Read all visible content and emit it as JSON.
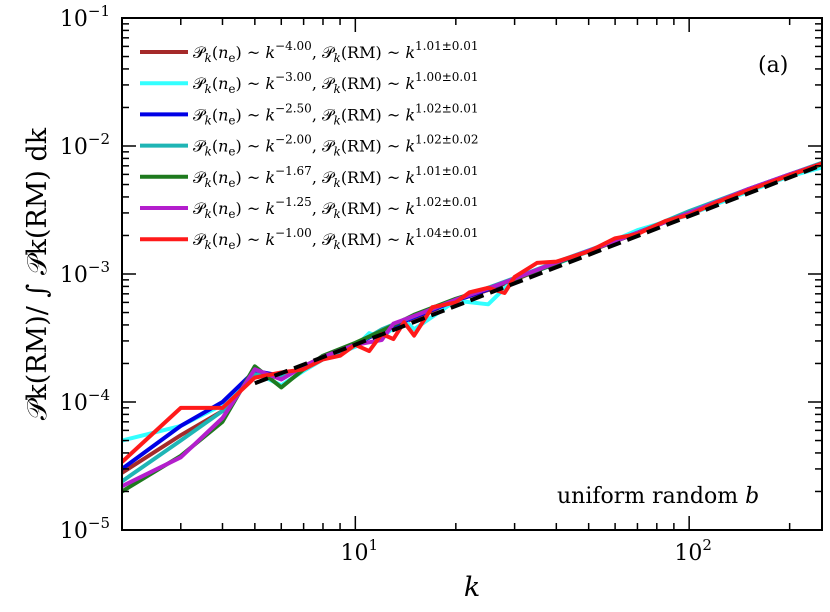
{
  "chart_data": {
    "type": "line",
    "title": "",
    "panel_label": "(a)",
    "annotation": {
      "prefix": "uniform random ",
      "symbol": "b"
    },
    "xlabel": "k",
    "ylabel": "𝒫k(RM)/ ∫ 𝒫k(RM) dk",
    "xscale": "log",
    "yscale": "log",
    "xlim": [
      2,
      250
    ],
    "ylim": [
      1e-05,
      0.1
    ],
    "grid": false,
    "legend_placement": "top-left",
    "x_ticks": [
      {
        "value": 10,
        "base": "10",
        "exp": "1"
      },
      {
        "value": 100,
        "base": "10",
        "exp": "2"
      }
    ],
    "y_ticks": [
      {
        "value": 1e-05,
        "base": "10",
        "exp": "−5"
      },
      {
        "value": 0.0001,
        "base": "10",
        "exp": "−4"
      },
      {
        "value": 0.001,
        "base": "10",
        "exp": "−3"
      },
      {
        "value": 0.01,
        "base": "10",
        "exp": "−2"
      },
      {
        "value": 0.1,
        "base": "10",
        "exp": "−1"
      }
    ],
    "series": [
      {
        "name": "𝒫k(ne) ~ k^−4.00, 𝒫k(RM) ~ k^1.01±0.01",
        "ne_exp": "−4.00",
        "rm_exp": "1.01±0.01",
        "color": "#a52a2a",
        "x": [
          2,
          3,
          4,
          5,
          6,
          7,
          8,
          10,
          12,
          15,
          20,
          25,
          30,
          40,
          50,
          70,
          100,
          150,
          200,
          250
        ],
        "y": [
          2.8e-05,
          5.5e-05,
          8.5e-05,
          0.000175,
          0.000155,
          0.00019,
          0.000225,
          0.00028,
          0.00036,
          0.00045,
          0.00062,
          0.00075,
          0.0009,
          0.00122,
          0.0015,
          0.0021,
          0.003,
          0.0045,
          0.0059,
          0.0072
        ]
      },
      {
        "name": "𝒫k(ne) ~ k^−3.00, 𝒫k(RM) ~ k^1.00±0.01",
        "ne_exp": "−3.00",
        "rm_exp": "1.00±0.01",
        "color": "#33ffff",
        "x": [
          2,
          3,
          4,
          5,
          6,
          7,
          8,
          10,
          11,
          12,
          14,
          15,
          20,
          25,
          30,
          40,
          50,
          70,
          100,
          150,
          200,
          250
        ],
        "y": [
          5e-05,
          6.5e-05,
          9.5e-05,
          0.00017,
          0.000135,
          0.000175,
          0.000215,
          0.00027,
          0.000345,
          0.00032,
          0.00044,
          0.00037,
          0.00062,
          0.00058,
          0.00092,
          0.0012,
          0.0015,
          0.0022,
          0.0029,
          0.0044,
          0.0058,
          0.0068
        ]
      },
      {
        "name": "𝒫k(ne) ~ k^−2.50, 𝒫k(RM) ~ k^1.02±0.01",
        "ne_exp": "−2.50",
        "rm_exp": "1.02±0.01",
        "color": "#0000e6",
        "x": [
          2,
          3,
          4,
          5,
          6,
          7,
          8,
          10,
          12,
          15,
          20,
          25,
          30,
          40,
          50,
          70,
          100,
          150,
          200,
          250
        ],
        "y": [
          3e-05,
          6.5e-05,
          0.0001,
          0.000175,
          0.00016,
          0.000185,
          0.00022,
          0.00028,
          0.00036,
          0.00046,
          0.00062,
          0.00076,
          0.00092,
          0.00123,
          0.00152,
          0.0021,
          0.003,
          0.0046,
          0.006,
          0.0073
        ]
      },
      {
        "name": "𝒫k(ne) ~ k^−2.00, 𝒫k(RM) ~ k^1.02±0.02",
        "ne_exp": "−2.00",
        "rm_exp": "1.02±0.02",
        "color": "#1fb5b5",
        "x": [
          2,
          3,
          4,
          5,
          6,
          7,
          8,
          10,
          12,
          15,
          20,
          25,
          30,
          40,
          50,
          70,
          100,
          150,
          200,
          250
        ],
        "y": [
          2.4e-05,
          5e-05,
          8.5e-05,
          0.000165,
          0.000155,
          0.00019,
          0.00022,
          0.00028,
          0.00037,
          0.00047,
          0.00063,
          0.00078,
          0.00093,
          0.00124,
          0.00153,
          0.0021,
          0.0031,
          0.0046,
          0.006,
          0.0074
        ]
      },
      {
        "name": "𝒫k(ne) ~ k^−1.67, 𝒫k(RM) ~ k^1.01±0.01",
        "ne_exp": "−1.67",
        "rm_exp": "1.01±0.01",
        "color": "#1e7a1e",
        "x": [
          2,
          3,
          4,
          5,
          6,
          7,
          8,
          10,
          12,
          15,
          20,
          25,
          30,
          40,
          50,
          70,
          100,
          150,
          200,
          250
        ],
        "y": [
          2e-05,
          3.8e-05,
          7e-05,
          0.00019,
          0.00013,
          0.00018,
          0.00023,
          0.00029,
          0.00036,
          0.00048,
          0.00064,
          0.00077,
          0.00091,
          0.00121,
          0.00151,
          0.0021,
          0.003,
          0.0045,
          0.0059,
          0.0072
        ]
      },
      {
        "name": "𝒫k(ne) ~ k^−1.25, 𝒫k(RM) ~ k^1.02±0.01",
        "ne_exp": "−1.25",
        "rm_exp": "1.02±0.01",
        "color": "#b31ecc",
        "x": [
          2,
          3,
          4,
          5,
          6,
          7,
          8,
          10,
          12,
          13,
          15,
          20,
          25,
          30,
          40,
          50,
          70,
          100,
          150,
          200,
          250
        ],
        "y": [
          2.2e-05,
          3.7e-05,
          7.5e-05,
          0.00018,
          0.00015,
          0.00019,
          0.000225,
          0.00028,
          0.000305,
          0.00041,
          0.00047,
          0.00063,
          0.00077,
          0.00092,
          0.00123,
          0.00152,
          0.0021,
          0.003,
          0.0046,
          0.006,
          0.0073
        ]
      },
      {
        "name": "𝒫k(ne) ~ k^−1.00, 𝒫k(RM) ~ k^1.04±0.01",
        "ne_exp": "−1.00",
        "rm_exp": "1.04±0.01",
        "color": "#ff1a1a",
        "x": [
          2,
          3,
          4,
          5,
          6,
          7,
          8,
          9,
          10,
          11,
          12,
          13,
          14,
          15,
          17,
          20,
          22,
          25,
          28,
          30,
          35,
          40,
          50,
          60,
          70,
          85,
          100,
          120,
          150,
          200,
          250
        ],
        "y": [
          3.4e-05,
          9e-05,
          9e-05,
          0.000155,
          0.00017,
          0.00018,
          0.000215,
          0.00023,
          0.00028,
          0.00025,
          0.00034,
          0.00031,
          0.00042,
          0.00033,
          0.00055,
          0.0006,
          0.00072,
          0.00078,
          0.00071,
          0.00095,
          0.00122,
          0.00125,
          0.0015,
          0.0019,
          0.00205,
          0.0026,
          0.0029,
          0.0036,
          0.0045,
          0.0059,
          0.0073
        ]
      }
    ],
    "fit_line": {
      "color": "#000000",
      "style": "dashed",
      "x": [
        5,
        250
      ],
      "y": [
        0.00014,
        0.0071
      ]
    }
  }
}
